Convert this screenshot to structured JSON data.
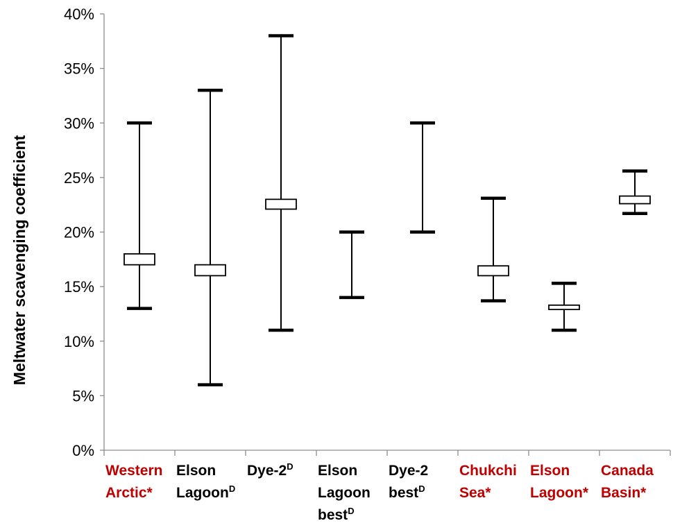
{
  "chart_data": {
    "type": "box",
    "ylabel": "Meltwater scavenging coefficient",
    "yticks": [
      "0%",
      "5%",
      "10%",
      "15%",
      "20%",
      "25%",
      "30%",
      "35%",
      "40%"
    ],
    "ylim": [
      0,
      0.4
    ],
    "grid": false,
    "colors": {
      "black": "#000000",
      "red": "#c00000"
    },
    "categories": [
      {
        "lines": [
          {
            "text": "Western"
          },
          {
            "text": "Arctic*"
          }
        ],
        "color": "red",
        "low": 0.13,
        "high": 0.3,
        "box_low": 0.17,
        "box_high": 0.18
      },
      {
        "lines": [
          {
            "text": "Elson"
          },
          {
            "text": "Lagoon",
            "sup": "D"
          }
        ],
        "color": "black",
        "low": 0.06,
        "high": 0.33,
        "box_low": 0.16,
        "box_high": 0.17
      },
      {
        "lines": [
          {
            "text": "Dye-2",
            "sup": "D"
          }
        ],
        "color": "black",
        "low": 0.11,
        "high": 0.38,
        "box_low": 0.221,
        "box_high": 0.23
      },
      {
        "lines": [
          {
            "text": "Elson"
          },
          {
            "text": "Lagoon"
          },
          {
            "text": "best",
            "sup": "D"
          }
        ],
        "color": "black",
        "low": 0.14,
        "high": 0.2,
        "box_low": null,
        "box_high": null
      },
      {
        "lines": [
          {
            "text": "Dye-2"
          },
          {
            "text": "best",
            "sup": "D"
          }
        ],
        "color": "black",
        "low": 0.2,
        "high": 0.3,
        "box_low": null,
        "box_high": null
      },
      {
        "lines": [
          {
            "text": "Chukchi"
          },
          {
            "text": "Sea*"
          }
        ],
        "color": "red",
        "low": 0.137,
        "high": 0.231,
        "box_low": 0.16,
        "box_high": 0.169
      },
      {
        "lines": [
          {
            "text": "Elson"
          },
          {
            "text": "Lagoon*"
          }
        ],
        "color": "red",
        "low": 0.11,
        "high": 0.153,
        "box_low": 0.129,
        "box_high": 0.133
      },
      {
        "lines": [
          {
            "text": "Canada"
          },
          {
            "text": "Basin*"
          }
        ],
        "color": "red",
        "low": 0.217,
        "high": 0.256,
        "box_low": 0.226,
        "box_high": 0.233
      }
    ]
  }
}
